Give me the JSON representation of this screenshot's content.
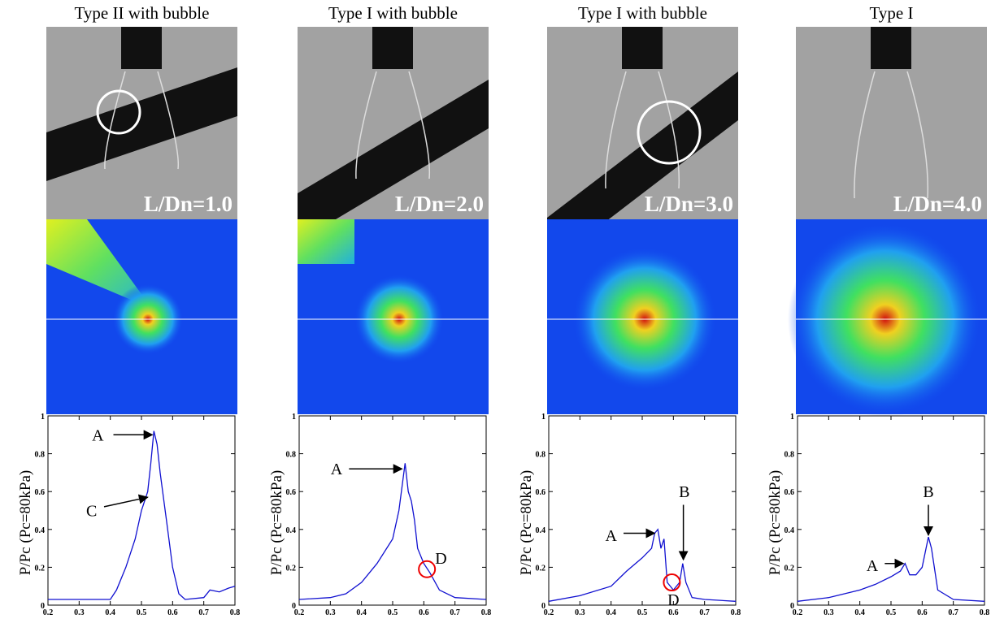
{
  "panels": [
    {
      "title": "Type II with bubble",
      "photo_label": "L/Dn=1.0"
    },
    {
      "title": "Type I with bubble",
      "photo_label": "L/Dn=2.0"
    },
    {
      "title": "Type I with bubble",
      "photo_label": "L/Dn=3.0"
    },
    {
      "title": "Type I",
      "photo_label": "L/Dn=4.0"
    }
  ],
  "chart_data": [
    {
      "type": "line",
      "y_label": "P/Pc (Pc=80kPa)",
      "color": "#1010d0",
      "x": [
        0.2,
        0.3,
        0.4,
        0.42,
        0.45,
        0.48,
        0.5,
        0.52,
        0.53,
        0.54,
        0.55,
        0.56,
        0.58,
        0.6,
        0.62,
        0.64,
        0.7,
        0.72,
        0.75,
        0.78,
        0.8
      ],
      "values": [
        0.03,
        0.03,
        0.03,
        0.08,
        0.2,
        0.35,
        0.5,
        0.6,
        0.75,
        0.92,
        0.85,
        0.7,
        0.45,
        0.2,
        0.06,
        0.03,
        0.04,
        0.08,
        0.07,
        0.09,
        0.1
      ],
      "xlim": [
        0.2,
        0.8
      ],
      "xticks": [
        0.2,
        0.3,
        0.4,
        0.5,
        0.6,
        0.7,
        0.8
      ],
      "ylim": [
        0,
        1
      ],
      "yticks": [
        0,
        0.2,
        0.4,
        0.6,
        0.8,
        1
      ],
      "annotations": [
        "A",
        "C"
      ]
    },
    {
      "type": "line",
      "y_label": "P/Pc (Pc=80kPa)",
      "color": "#1010d0",
      "x": [
        0.2,
        0.3,
        0.35,
        0.4,
        0.45,
        0.5,
        0.52,
        0.54,
        0.55,
        0.56,
        0.57,
        0.58,
        0.6,
        0.62,
        0.65,
        0.7,
        0.8
      ],
      "values": [
        0.03,
        0.04,
        0.06,
        0.12,
        0.22,
        0.35,
        0.5,
        0.75,
        0.6,
        0.55,
        0.45,
        0.3,
        0.22,
        0.17,
        0.08,
        0.04,
        0.03
      ],
      "xlim": [
        0.2,
        0.8
      ],
      "xticks": [
        0.2,
        0.3,
        0.4,
        0.5,
        0.6,
        0.7,
        0.8
      ],
      "ylim": [
        0,
        1
      ],
      "yticks": [
        0,
        0.2,
        0.4,
        0.6,
        0.8,
        1
      ],
      "annotations": [
        "A",
        "D"
      ]
    },
    {
      "type": "line",
      "y_label": "P/Pc (Pc=80kPa)",
      "color": "#1010d0",
      "x": [
        0.2,
        0.3,
        0.4,
        0.45,
        0.5,
        0.53,
        0.54,
        0.55,
        0.56,
        0.57,
        0.58,
        0.6,
        0.62,
        0.63,
        0.64,
        0.66,
        0.7,
        0.8
      ],
      "values": [
        0.02,
        0.05,
        0.1,
        0.18,
        0.25,
        0.3,
        0.38,
        0.4,
        0.3,
        0.35,
        0.12,
        0.08,
        0.12,
        0.22,
        0.12,
        0.04,
        0.03,
        0.02
      ],
      "xlim": [
        0.2,
        0.8
      ],
      "xticks": [
        0.2,
        0.3,
        0.4,
        0.5,
        0.6,
        0.7,
        0.8
      ],
      "ylim": [
        0,
        1
      ],
      "yticks": [
        0,
        0.2,
        0.4,
        0.6,
        0.8,
        1
      ],
      "annotations": [
        "A",
        "B",
        "D"
      ]
    },
    {
      "type": "line",
      "y_label": "P/Pc (Pc=80kPa)",
      "color": "#1010d0",
      "x": [
        0.2,
        0.3,
        0.4,
        0.45,
        0.5,
        0.53,
        0.545,
        0.56,
        0.58,
        0.6,
        0.62,
        0.63,
        0.65,
        0.7,
        0.8
      ],
      "values": [
        0.02,
        0.04,
        0.08,
        0.11,
        0.15,
        0.18,
        0.22,
        0.16,
        0.16,
        0.2,
        0.36,
        0.3,
        0.08,
        0.03,
        0.02
      ],
      "xlim": [
        0.2,
        0.8
      ],
      "xticks": [
        0.2,
        0.3,
        0.4,
        0.5,
        0.6,
        0.7,
        0.8
      ],
      "ylim": [
        0,
        1
      ],
      "yticks": [
        0,
        0.2,
        0.4,
        0.6,
        0.8,
        1
      ],
      "annotations": [
        "A",
        "B"
      ]
    }
  ]
}
